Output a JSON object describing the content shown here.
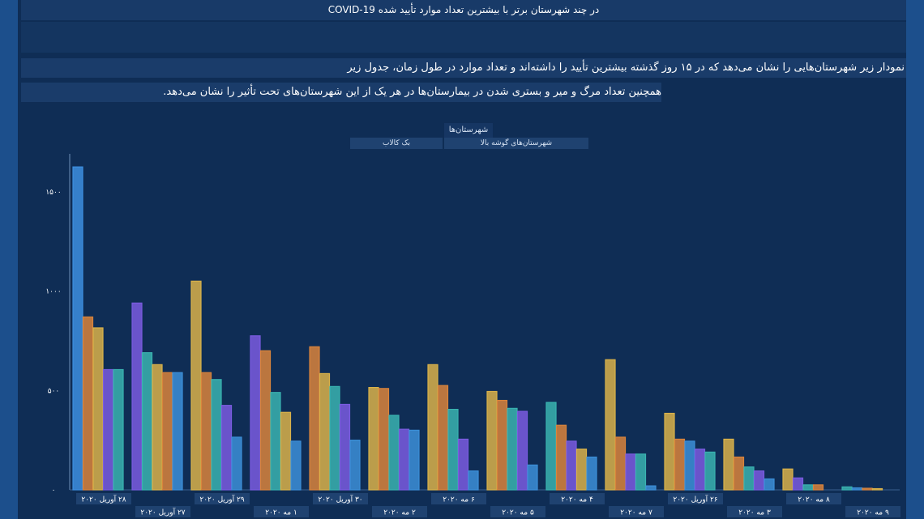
{
  "title": "COVID-19 در چند شهرستان برتر با بیشترین تعداد موارد تأیید شده",
  "description_line1": "نمودار زیر شهرستان‌هایی را نشان می‌دهد که در ۱۵ روز گذشته بیشترین تأیید را داشته‌اند و تعداد موارد در طول زمان، جدول زیر",
  "description_line2": "همچنین تعداد مرگ و میر و بستری شدن در بیمارستان‌ها در هر یک از این شهرستان‌های تحت تأثیر را نشان می‌دهد.",
  "legend": {
    "title": "شهرستان‌ها",
    "items": [
      "شهرستان‌های گوشه بالا",
      "بک کالاب"
    ]
  },
  "colors": {
    "background": "#0f2d55",
    "frame": "#1c4f8c",
    "series": [
      "#3d8fe0",
      "#d9843c",
      "#d9b24a",
      "#7a5ce0",
      "#3ab3b0",
      "#3c8fd8"
    ]
  },
  "chart_data": {
    "type": "bar",
    "ylim": [
      0,
      1650
    ],
    "yticks": [
      "۰",
      "۵۰۰",
      "۱۰۰۰",
      "۱۵۰۰"
    ],
    "categories": [
      "۲۸ آوریل ۲۰۲۰",
      "۲۷ آوریل ۲۰۲۰",
      "۲۹ آوریل ۲۰۲۰",
      "۱ مه ۲۰۲۰",
      "۳۰ آوریل ۲۰۲۰",
      "۲ مه ۲۰۲۰",
      "۶ مه ۲۰۲۰",
      "۵ مه ۲۰۲۰",
      "۴ مه ۲۰۲۰",
      "۷ مه ۲۰۲۰",
      "۲۶ آوریل ۲۰۲۰",
      "۳ مه ۲۰۲۰",
      "۸ مه ۲۰۲۰",
      "۹ مه ۲۰۲۰"
    ],
    "groups": [
      [
        {
          "c": 0,
          "v": 1625
        },
        {
          "c": 1,
          "v": 870
        },
        {
          "c": 2,
          "v": 815
        },
        {
          "c": 3,
          "v": 605
        },
        {
          "c": 4,
          "v": 605
        }
      ],
      [
        {
          "c": 3,
          "v": 940
        },
        {
          "c": 4,
          "v": 690
        },
        {
          "c": 2,
          "v": 630
        },
        {
          "c": 1,
          "v": 590
        },
        {
          "c": 5,
          "v": 590
        }
      ],
      [
        {
          "c": 2,
          "v": 1050
        },
        {
          "c": 1,
          "v": 590
        },
        {
          "c": 4,
          "v": 555
        },
        {
          "c": 3,
          "v": 425
        },
        {
          "c": 5,
          "v": 265
        }
      ],
      [
        {
          "c": 3,
          "v": 775
        },
        {
          "c": 1,
          "v": 700
        },
        {
          "c": 4,
          "v": 490
        },
        {
          "c": 2,
          "v": 390
        },
        {
          "c": 5,
          "v": 245
        }
      ],
      [
        {
          "c": 1,
          "v": 720
        },
        {
          "c": 2,
          "v": 585
        },
        {
          "c": 4,
          "v": 520
        },
        {
          "c": 3,
          "v": 430
        },
        {
          "c": 5,
          "v": 250
        }
      ],
      [
        {
          "c": 2,
          "v": 515
        },
        {
          "c": 1,
          "v": 510
        },
        {
          "c": 4,
          "v": 375
        },
        {
          "c": 3,
          "v": 305
        },
        {
          "c": 5,
          "v": 300
        }
      ],
      [
        {
          "c": 2,
          "v": 630
        },
        {
          "c": 1,
          "v": 525
        },
        {
          "c": 4,
          "v": 405
        },
        {
          "c": 3,
          "v": 255
        },
        {
          "c": 5,
          "v": 95
        }
      ],
      [
        {
          "c": 2,
          "v": 495
        },
        {
          "c": 1,
          "v": 450
        },
        {
          "c": 4,
          "v": 410
        },
        {
          "c": 3,
          "v": 395
        },
        {
          "c": 5,
          "v": 125
        }
      ],
      [
        {
          "c": 4,
          "v": 440
        },
        {
          "c": 1,
          "v": 325
        },
        {
          "c": 3,
          "v": 245
        },
        {
          "c": 2,
          "v": 205
        },
        {
          "c": 5,
          "v": 165
        }
      ],
      [
        {
          "c": 2,
          "v": 655
        },
        {
          "c": 1,
          "v": 265
        },
        {
          "c": 3,
          "v": 180
        },
        {
          "c": 4,
          "v": 180
        },
        {
          "c": 5,
          "v": 20
        }
      ],
      [
        {
          "c": 2,
          "v": 385
        },
        {
          "c": 1,
          "v": 255
        },
        {
          "c": 5,
          "v": 245
        },
        {
          "c": 3,
          "v": 205
        },
        {
          "c": 4,
          "v": 190
        }
      ],
      [
        {
          "c": 2,
          "v": 255
        },
        {
          "c": 1,
          "v": 165
        },
        {
          "c": 4,
          "v": 115
        },
        {
          "c": 3,
          "v": 95
        },
        {
          "c": 5,
          "v": 55
        }
      ],
      [
        {
          "c": 2,
          "v": 105
        },
        {
          "c": 3,
          "v": 60
        },
        {
          "c": 4,
          "v": 25
        },
        {
          "c": 1,
          "v": 25
        }
      ],
      [
        {
          "c": 4,
          "v": 15
        },
        {
          "c": 5,
          "v": 10
        },
        {
          "c": 1,
          "v": 8
        },
        {
          "c": 2,
          "v": 6
        }
      ]
    ]
  }
}
